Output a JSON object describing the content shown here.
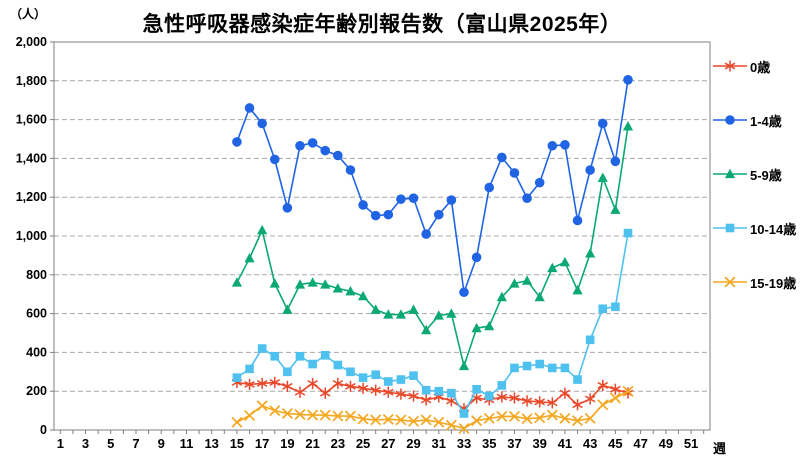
{
  "title": "急性呼吸器感染症年齢別報告数（富山県2025年）",
  "y_axis": {
    "unit": "（人）",
    "min": 0,
    "max": 2000,
    "step": 200,
    "tick_labels": [
      "0",
      "200",
      "400",
      "600",
      "800",
      "1,000",
      "1,200",
      "1,400",
      "1,600",
      "1,800",
      "2,000"
    ]
  },
  "x_axis": {
    "unit": "週",
    "weeks_total": 52,
    "tick_labels": [
      "1",
      "3",
      "5",
      "7",
      "9",
      "11",
      "13",
      "15",
      "17",
      "19",
      "21",
      "23",
      "25",
      "27",
      "29",
      "31",
      "33",
      "35",
      "37",
      "39",
      "41",
      "43",
      "45",
      "47",
      "49",
      "51"
    ]
  },
  "legend": {
    "position": "right",
    "items": [
      {
        "id": "age-0",
        "label": "0歳",
        "color": "#e8492a",
        "marker": "asterisk"
      },
      {
        "id": "age-1-4",
        "label": "1-4歳",
        "color": "#2064e4",
        "marker": "circle"
      },
      {
        "id": "age-5-9",
        "label": "5-9歳",
        "color": "#0aa873",
        "marker": "triangle"
      },
      {
        "id": "age-10-14",
        "label": "10-14歳",
        "color": "#4fc1ef",
        "marker": "square"
      },
      {
        "id": "age-15-19",
        "label": "15-19歳",
        "color": "#f4a71f",
        "marker": "x"
      }
    ]
  },
  "chart_data": {
    "type": "line",
    "title": "急性呼吸器感染症年齢別報告数（富山県2025年）",
    "xlabel": "週",
    "ylabel": "（人）",
    "xlim": [
      1,
      52
    ],
    "ylim": [
      0,
      2000
    ],
    "grid": "horizontal-dashed",
    "legend_position": "right",
    "x": [
      15,
      16,
      17,
      18,
      19,
      20,
      21,
      22,
      23,
      24,
      25,
      26,
      27,
      28,
      29,
      30,
      31,
      32,
      33,
      34,
      35,
      36,
      37,
      38,
      39,
      40,
      41,
      42,
      43,
      44,
      45,
      46
    ],
    "series": [
      {
        "id": "age-0",
        "name": "0歳",
        "marker": "asterisk",
        "color": "#e8492a",
        "values": [
          245,
          235,
          240,
          245,
          225,
          195,
          240,
          190,
          240,
          225,
          215,
          205,
          195,
          185,
          175,
          155,
          170,
          150,
          110,
          165,
          155,
          170,
          165,
          150,
          145,
          140,
          190,
          130,
          160,
          230,
          210,
          190
        ]
      },
      {
        "id": "age-1-4",
        "name": "1-4歳",
        "marker": "circle",
        "color": "#2064e4",
        "values": [
          1485,
          1660,
          1580,
          1395,
          1145,
          1465,
          1480,
          1440,
          1415,
          1340,
          1160,
          1105,
          1110,
          1190,
          1195,
          1010,
          1110,
          1185,
          710,
          890,
          1250,
          1405,
          1325,
          1195,
          1275,
          1465,
          1470,
          1080,
          1340,
          1580,
          1385,
          1805
        ]
      },
      {
        "id": "age-5-9",
        "name": "5-9歳",
        "marker": "triangle",
        "color": "#0aa873",
        "values": [
          760,
          885,
          1030,
          755,
          620,
          750,
          760,
          750,
          730,
          715,
          690,
          620,
          595,
          595,
          620,
          515,
          590,
          600,
          330,
          525,
          535,
          685,
          755,
          770,
          685,
          835,
          865,
          720,
          910,
          1300,
          1135,
          1565
        ]
      },
      {
        "id": "age-10-14",
        "name": "10-14歳",
        "marker": "square",
        "color": "#4fc1ef",
        "values": [
          270,
          315,
          420,
          380,
          300,
          380,
          340,
          385,
          335,
          300,
          270,
          285,
          250,
          260,
          280,
          205,
          200,
          190,
          85,
          210,
          175,
          230,
          320,
          330,
          340,
          320,
          320,
          260,
          465,
          625,
          635,
          1015
        ]
      },
      {
        "id": "age-15-19",
        "name": "15-19歳",
        "marker": "x",
        "color": "#f4a71f",
        "values": [
          40,
          75,
          125,
          100,
          85,
          80,
          77,
          77,
          72,
          72,
          57,
          52,
          55,
          52,
          45,
          52,
          40,
          25,
          8,
          48,
          60,
          70,
          70,
          58,
          63,
          77,
          60,
          48,
          60,
          130,
          165,
          200
        ]
      }
    ]
  }
}
